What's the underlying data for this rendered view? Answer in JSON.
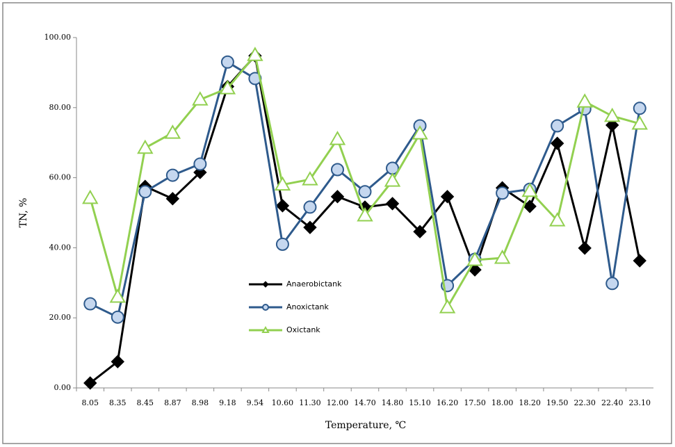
{
  "chart_data": {
    "type": "line",
    "xlabel": "Temperature, ℃",
    "ylabel": "TN, %",
    "categories": [
      "8.05",
      "8.35",
      "8.45",
      "8.87",
      "8.98",
      "9.18",
      "9.54",
      "10.60",
      "11.30",
      "12.00",
      "14.70",
      "14.80",
      "15.10",
      "16.20",
      "17.50",
      "18.00",
      "18.20",
      "19.50",
      "22.30",
      "22.40",
      "23.10"
    ],
    "series": [
      {
        "name": "Anaerobictank",
        "color": "#000000",
        "marker": "diamond",
        "values": [
          1.4,
          7.5,
          57.5,
          54,
          61.5,
          86,
          94.8,
          52,
          45.8,
          54.6,
          51.6,
          52.6,
          44.6,
          54.6,
          33.7,
          57.1,
          51.8,
          69.8,
          39.9,
          75,
          36.3
        ]
      },
      {
        "name": "Anoxictank",
        "color": "#2e5a8c",
        "marker": "circle",
        "values": [
          24,
          20.2,
          56,
          60.7,
          63.9,
          93,
          88.3,
          41,
          51.6,
          62.3,
          56,
          62.7,
          74.8,
          29.2,
          36.7,
          55.6,
          56.7,
          74.8,
          79.6,
          29.8,
          79.8
        ]
      },
      {
        "name": "Oxictank",
        "color": "#92d050",
        "marker": "triangle",
        "values": [
          54.2,
          26,
          68.5,
          72.8,
          82.3,
          85.5,
          95,
          58,
          59.5,
          71,
          49.2,
          59.1,
          72.6,
          23,
          36.5,
          37.1,
          56.2,
          47.8,
          81.7,
          77.6,
          75.4
        ]
      }
    ],
    "ylim": [
      0,
      100
    ],
    "yticks": [
      {
        "value": 0,
        "label": "0.00"
      },
      {
        "value": 20,
        "label": "20.00"
      },
      {
        "value": 40,
        "label": "40.00"
      },
      {
        "value": 60,
        "label": "60.00"
      },
      {
        "value": 80,
        "label": "80.00"
      },
      {
        "value": 100,
        "label": "100.00"
      }
    ],
    "grid": false
  }
}
